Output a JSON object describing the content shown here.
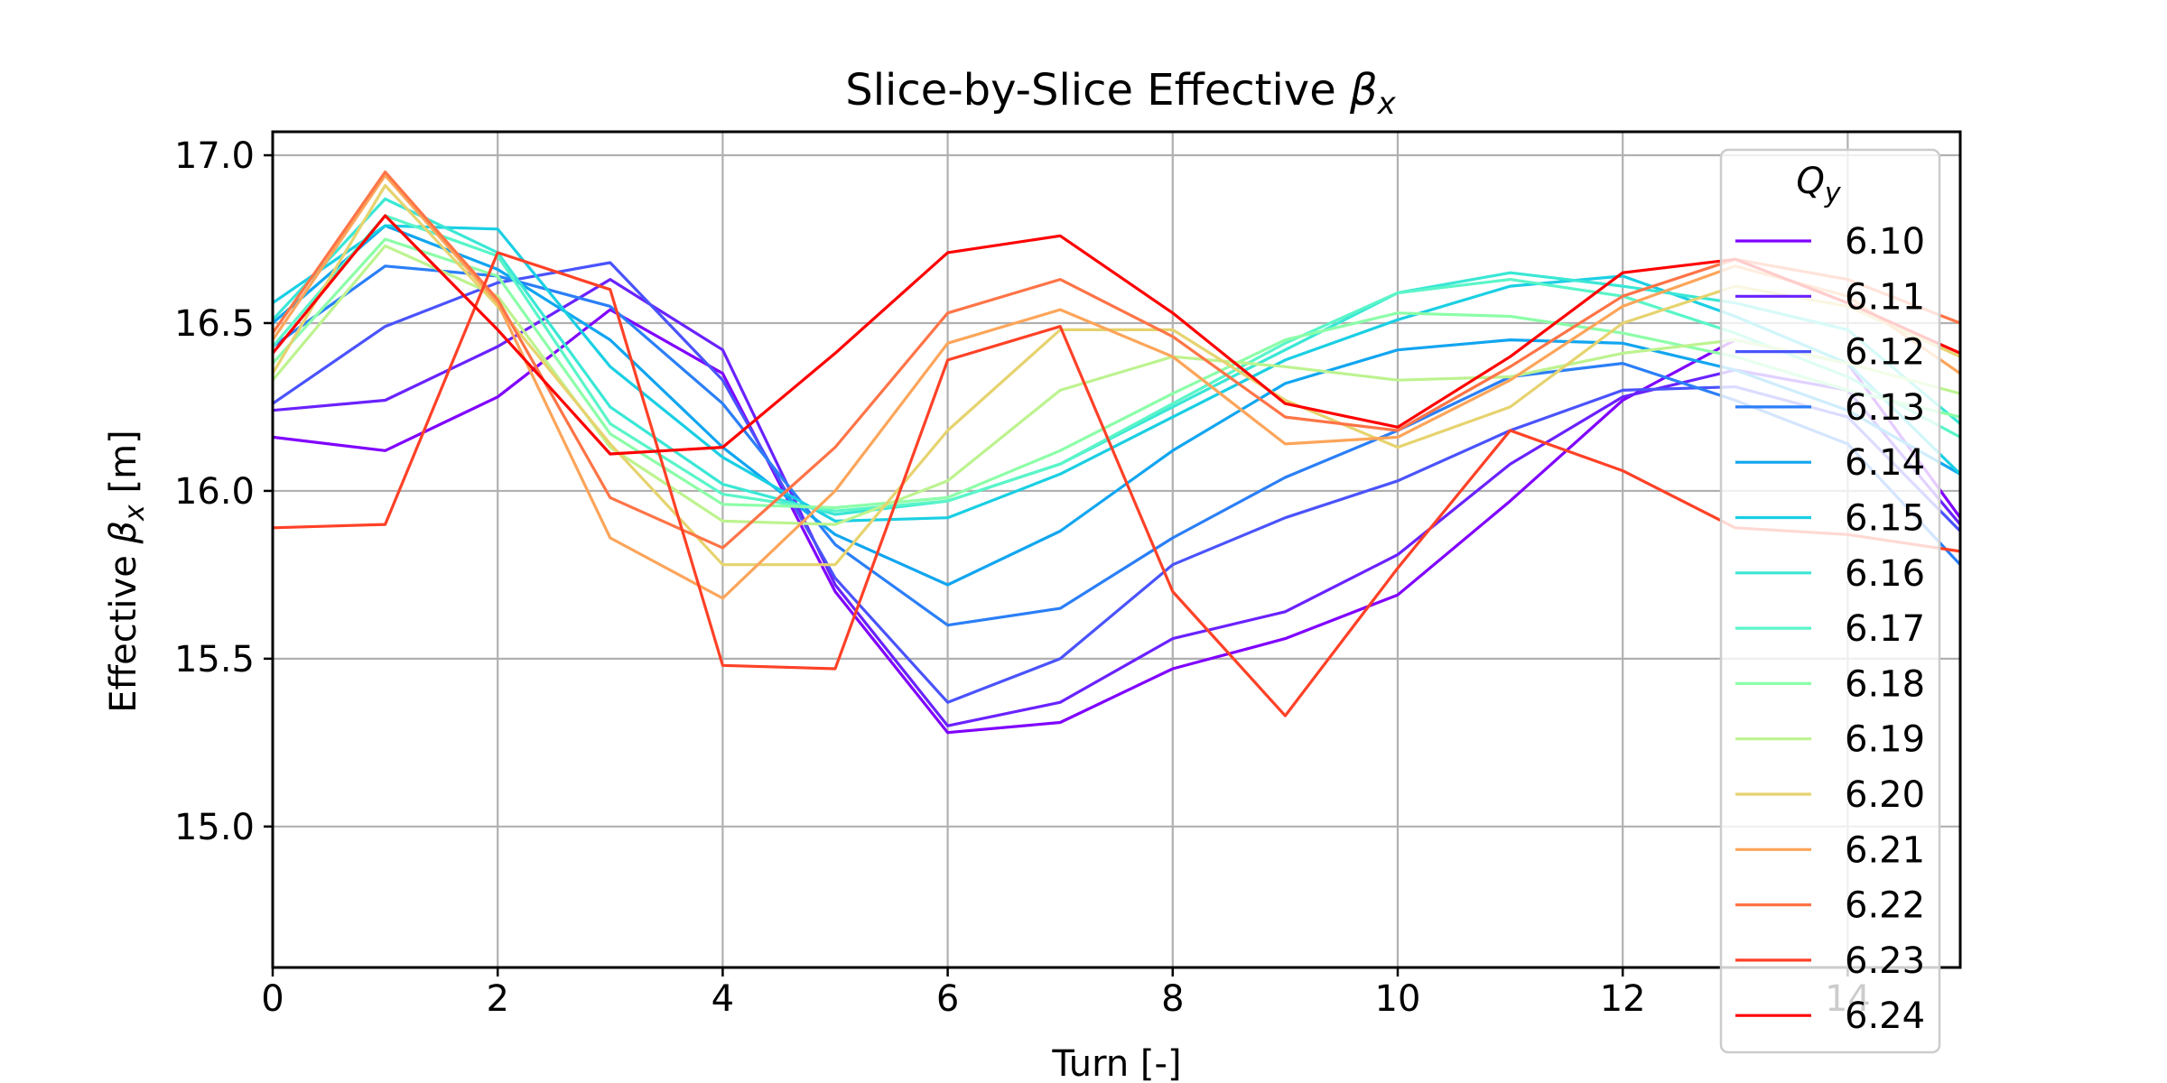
{
  "chart_data": {
    "type": "line",
    "title": {
      "prefix": "Slice-by-Slice Effective ",
      "symbol": "β",
      "sub": "x"
    },
    "xlabel": "Turn [-]",
    "ylabel": {
      "prefix": "Effective ",
      "symbol": "β",
      "sub": "x",
      "suffix": " [m]"
    },
    "xlim": [
      0,
      15
    ],
    "ylim": [
      14.58,
      17.07
    ],
    "xticks": [
      0,
      2,
      4,
      6,
      8,
      10,
      12,
      14
    ],
    "yticks": [
      15.0,
      15.5,
      16.0,
      16.5,
      17.0
    ],
    "ytick_labels": [
      "15.0",
      "15.5",
      "16.0",
      "16.5",
      "17.0"
    ],
    "grid": true,
    "legend": {
      "title": {
        "symbol": "Q",
        "sub": "y"
      },
      "placement": "right"
    },
    "x": [
      0,
      1,
      2,
      3,
      4,
      5,
      6,
      7,
      8,
      9,
      10,
      11,
      12,
      13,
      14,
      15
    ],
    "series": [
      {
        "name": "6.10",
        "color": "#8000ff",
        "values": [
          16.16,
          16.12,
          16.28,
          16.54,
          16.35,
          15.7,
          15.28,
          15.31,
          15.47,
          15.56,
          15.69,
          15.97,
          16.27,
          16.45,
          16.38,
          15.92
        ]
      },
      {
        "name": "6.11",
        "color": "#6629fe",
        "values": [
          16.24,
          16.27,
          16.43,
          16.63,
          16.42,
          15.72,
          15.3,
          15.37,
          15.56,
          15.64,
          15.81,
          16.08,
          16.28,
          16.36,
          16.3,
          15.9
        ]
      },
      {
        "name": "6.12",
        "color": "#4c50fc",
        "values": [
          16.26,
          16.49,
          16.62,
          16.68,
          16.33,
          15.74,
          15.37,
          15.5,
          15.78,
          15.92,
          16.03,
          16.18,
          16.3,
          16.31,
          16.22,
          15.88
        ]
      },
      {
        "name": "6.13",
        "color": "#3176f8",
        "values": [
          16.43,
          16.67,
          16.64,
          16.55,
          16.26,
          15.84,
          15.6,
          15.65,
          15.86,
          16.04,
          16.18,
          16.34,
          16.38,
          16.27,
          16.14,
          15.78
        ]
      },
      {
        "name": "6.14",
        "color": "#1996f3",
        "values": [
          16.5,
          16.79,
          16.66,
          16.45,
          16.13,
          15.87,
          15.72,
          15.88,
          16.12,
          16.32,
          16.42,
          16.45,
          16.44,
          16.36,
          16.24,
          16.05
        ]
      },
      {
        "name": "6.15",
        "color": "#00b5eb",
        "values": [
          16.56,
          16.79,
          16.78,
          16.37,
          16.1,
          15.91,
          15.92,
          16.05,
          16.22,
          16.39,
          16.51,
          16.61,
          16.64,
          16.52,
          16.38,
          16.05
        ]
      },
      {
        "name": "6.16",
        "color": "#1acfe3",
        "values": [
          16.51,
          16.87,
          16.71,
          16.25,
          16.02,
          15.93,
          15.97,
          16.08,
          16.25,
          16.42,
          16.59,
          16.65,
          16.61,
          16.56,
          16.48,
          16.2
        ]
      },
      {
        "name": "6.17",
        "color": "#33e4d7",
        "values": [
          16.43,
          16.82,
          16.7,
          16.2,
          15.99,
          15.94,
          15.97,
          16.08,
          16.26,
          16.44,
          16.59,
          16.63,
          16.58,
          16.47,
          16.34,
          16.16
        ]
      },
      {
        "name": "6.18",
        "color": "#4df3ce",
        "values": [
          16.38,
          16.75,
          16.64,
          16.17,
          15.96,
          15.95,
          15.98,
          16.12,
          16.29,
          16.45,
          16.53,
          16.52,
          16.47,
          16.4,
          16.3,
          16.22
        ]
      },
      {
        "name": "6.19",
        "color": "#66fcc1",
        "values": [
          16.33,
          16.73,
          16.58,
          16.13,
          15.91,
          15.9,
          16.03,
          16.3,
          16.4,
          16.37,
          16.33,
          16.34,
          16.41,
          16.45,
          16.38,
          16.29
        ]
      },
      {
        "name": "6.20",
        "color": "#8ffeae",
        "values": [
          16.35,
          16.91,
          16.55,
          16.14,
          15.78,
          15.78,
          16.18,
          16.48,
          16.48,
          16.27,
          16.13,
          16.25,
          16.5,
          16.61,
          16.55,
          16.4
        ]
      },
      {
        "name": "6.21",
        "color": "#a6fb9f",
        "values": [
          16.45,
          16.94,
          16.56,
          15.86,
          15.68,
          16.0,
          16.44,
          16.54,
          16.4,
          16.14,
          16.16,
          16.33,
          16.55,
          16.67,
          16.58,
          16.35
        ]
      },
      {
        "name": "6.22",
        "color": "#c0f08f",
        "values": [
          16.47,
          16.95,
          16.57,
          15.98,
          15.83,
          16.13,
          16.53,
          16.63,
          16.46,
          16.22,
          16.18,
          16.37,
          16.58,
          16.69,
          16.63,
          16.5
        ]
      },
      {
        "name": "6.23",
        "color": "#d9df81",
        "values": [
          15.89,
          15.9,
          16.71,
          16.6,
          15.48,
          15.47,
          16.39,
          16.49,
          15.7,
          15.33,
          15.77,
          16.18,
          16.06,
          15.89,
          15.87,
          15.82
        ]
      },
      {
        "name": "6.24",
        "color": "#f2c36f",
        "values": [
          16.41,
          16.82,
          16.48,
          16.11,
          16.13,
          16.41,
          16.71,
          16.76,
          16.53,
          16.26,
          16.19,
          16.4,
          16.65,
          16.69,
          16.56,
          16.41
        ]
      }
    ],
    "render_colors": [
      "#8000ff",
      "#6a22fe",
      "#4a53fc",
      "#2b7ff7",
      "#11a5f0",
      "#1acfe3",
      "#3ae7d5",
      "#5af5c8",
      "#8cfea8",
      "#bdf38f",
      "#e6d36f",
      "#fca55a",
      "#ff7447",
      "#ff4127",
      "#ff0000"
    ]
  }
}
